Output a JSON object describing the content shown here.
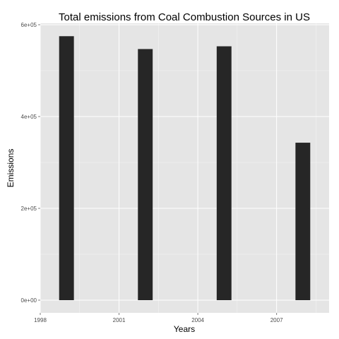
{
  "chart_data": {
    "type": "bar",
    "title": "Total emissions from Coal Combustion Sources in US",
    "xlabel": "Years",
    "ylabel": "Emissions",
    "x": [
      1999,
      2002,
      2005,
      2008
    ],
    "values": [
      575000,
      547000,
      553000,
      343000
    ],
    "xlim": [
      1998,
      2009
    ],
    "ylim": [
      0,
      600000
    ],
    "xticks": [
      1998,
      2001,
      2004,
      2007
    ],
    "xtick_labels": [
      "1998",
      "2001",
      "2004",
      "2007"
    ],
    "yticks": [
      0,
      200000,
      400000,
      600000
    ],
    "ytick_labels": [
      "0e+00",
      "2e+05",
      "4e+05",
      "6e+05"
    ],
    "bar_color": "#262626",
    "panel_background": "#e5e5e5",
    "grid_color": "#ffffff",
    "grid": true,
    "legend": "none"
  }
}
